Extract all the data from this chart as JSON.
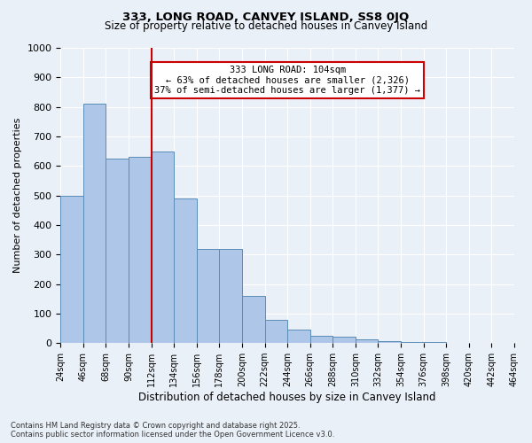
{
  "title1": "333, LONG ROAD, CANVEY ISLAND, SS8 0JQ",
  "title2": "Size of property relative to detached houses in Canvey Island",
  "xlabel": "Distribution of detached houses by size in Canvey Island",
  "ylabel": "Number of detached properties",
  "bar_values": [
    500,
    810,
    625,
    630,
    648,
    490,
    320,
    320,
    160,
    80,
    45,
    25,
    22,
    12,
    8,
    5,
    3,
    2,
    1,
    1
  ],
  "bin_labels": [
    "24sqm",
    "46sqm",
    "68sqm",
    "90sqm",
    "112sqm",
    "134sqm",
    "156sqm",
    "178sqm",
    "200sqm",
    "222sqm",
    "244sqm",
    "266sqm",
    "288sqm",
    "310sqm",
    "332sqm",
    "354sqm",
    "376sqm",
    "398sqm",
    "420sqm",
    "442sqm",
    "464sqm"
  ],
  "bar_color": "#aec6e8",
  "bar_edge_color": "#5b8db8",
  "bar_width": 1.0,
  "vline_x": 4,
  "vline_color": "#cc0000",
  "annotation_text": "333 LONG ROAD: 104sqm\n← 63% of detached houses are smaller (2,326)\n37% of semi-detached houses are larger (1,377) →",
  "annotation_box_color": "#ffffff",
  "annotation_box_edge": "#cc0000",
  "ylim": [
    0,
    1000
  ],
  "yticks": [
    0,
    100,
    200,
    300,
    400,
    500,
    600,
    700,
    800,
    900,
    1000
  ],
  "bg_color": "#eaf0f8",
  "grid_color": "#ffffff",
  "footer": "Contains HM Land Registry data © Crown copyright and database right 2025.\nContains public sector information licensed under the Open Government Licence v3.0."
}
